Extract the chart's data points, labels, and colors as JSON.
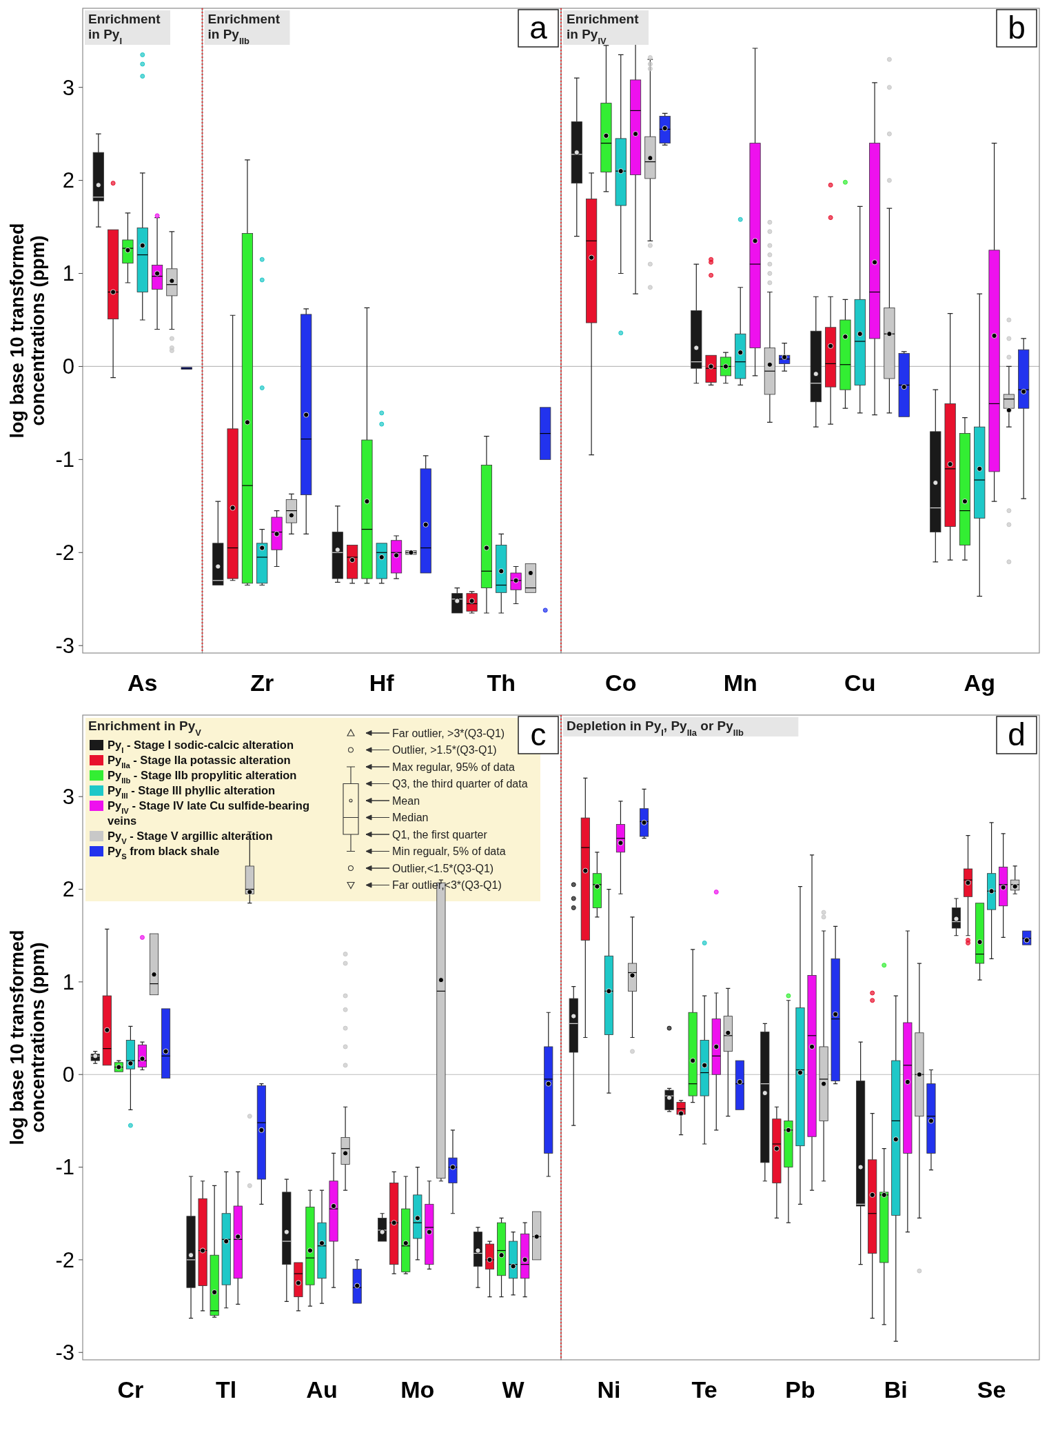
{
  "chart_data": [
    {
      "type": "box",
      "ylabel": "log base 10 transformed concentrations (ppm)",
      "annotations": [
        "Enrichment in Py$_{I}$"
      ],
      "categories": [
        "As"
      ],
      "ylim": [
        -3.08,
        3.85
      ],
      "yticks": [
        -3,
        -2,
        -1,
        0,
        1,
        2,
        3
      ],
      "ref_lines": [
        {
          "axis": "y",
          "value": 0
        }
      ],
      "series": [
        {
          "color": "#1a1a1a",
          "boxes": [
            {
              "low": 1.5,
              "q1": 1.78,
              "median": 1.82,
              "q3": 2.3,
              "high": 2.5,
              "mean": 1.95
            }
          ]
        },
        {
          "color": "#e8112d",
          "boxes": [
            {
              "low": -0.12,
              "q1": 0.51,
              "median": 0.8,
              "q3": 1.47,
              "high": 1.47,
              "mean": 0.8,
              "outliers": [
                1.97
              ]
            }
          ]
        },
        {
          "color": "#33ee33",
          "boxes": [
            {
              "low": 0.9,
              "q1": 1.11,
              "median": 1.27,
              "q3": 1.36,
              "high": 1.65,
              "mean": 1.25
            }
          ]
        },
        {
          "color": "#1ec8c8",
          "boxes": [
            {
              "low": 0.5,
              "q1": 0.8,
              "median": 1.2,
              "q3": 1.49,
              "high": 2.08,
              "mean": 1.3,
              "outliers": [
                3.35,
                3.25,
                3.12
              ]
            }
          ]
        },
        {
          "color": "#ee11ee",
          "boxes": [
            {
              "low": 0.4,
              "q1": 0.83,
              "median": 0.97,
              "q3": 1.09,
              "high": 1.6,
              "mean": 1.0,
              "outliers": [
                1.62
              ]
            }
          ]
        },
        {
          "color": "#c8c8c8",
          "boxes": [
            {
              "low": 0.4,
              "q1": 0.76,
              "median": 0.88,
              "q3": 1.05,
              "high": 1.45,
              "mean": 0.92,
              "outliers": [
                0.3,
                0.2,
                0.17
              ]
            }
          ]
        },
        {
          "color": "#2233ee",
          "boxes": [
            {
              "low": -0.03,
              "q1": -0.03,
              "median": -0.02,
              "q3": -0.01,
              "high": -0.01
            }
          ]
        }
      ]
    },
    {
      "type": "box",
      "title": "a",
      "tick_labels": "x",
      "annotations": [
        "Enrichment in Py$_{IIb}$"
      ],
      "categories": [
        "Zr",
        "Hf",
        "Th"
      ],
      "ylim": [
        -3.08,
        3.85
      ],
      "yticks": [
        -3,
        -2,
        -1,
        0,
        1,
        2,
        3
      ],
      "ref_lines": [
        {
          "axis": "y",
          "value": 0
        }
      ],
      "series": [
        {
          "color": "#1a1a1a",
          "boxes": [
            {
              "low": -2.35,
              "q1": -2.35,
              "median": -2.3,
              "q3": -1.9,
              "high": -1.45,
              "mean": -2.15
            },
            {
              "low": -2.32,
              "q1": -2.28,
              "median": -2.0,
              "q3": -1.78,
              "high": -1.5,
              "mean": -1.97
            },
            {
              "low": -2.65,
              "q1": -2.65,
              "median": -2.5,
              "q3": -2.44,
              "high": -2.38,
              "mean": -2.52
            }
          ]
        },
        {
          "color": "#e8112d",
          "boxes": [
            {
              "low": -2.3,
              "q1": -2.28,
              "median": -1.95,
              "q3": -0.67,
              "high": 0.55,
              "mean": -1.52
            },
            {
              "low": -2.33,
              "q1": -2.28,
              "median": -2.05,
              "q3": -1.92,
              "high": -1.92,
              "mean": -2.08
            },
            {
              "low": -2.65,
              "q1": -2.63,
              "median": -2.55,
              "q3": -2.44,
              "high": -2.42,
              "mean": -2.52
            }
          ]
        },
        {
          "color": "#33ee33",
          "boxes": [
            {
              "low": -2.35,
              "q1": -2.33,
              "median": -1.28,
              "q3": 1.43,
              "high": 2.22,
              "mean": -0.6
            },
            {
              "low": -2.33,
              "q1": -2.28,
              "median": -1.75,
              "q3": -0.79,
              "high": 0.63,
              "mean": -1.45
            },
            {
              "low": -2.65,
              "q1": -2.38,
              "median": -2.2,
              "q3": -1.06,
              "high": -0.75,
              "mean": -1.95
            }
          ]
        },
        {
          "color": "#1ec8c8",
          "boxes": [
            {
              "low": -2.35,
              "q1": -2.33,
              "median": -2.05,
              "q3": -1.9,
              "high": -1.75,
              "mean": -1.95,
              "outliers": [
                1.15,
                0.93,
                -0.23
              ]
            },
            {
              "low": -2.33,
              "q1": -2.28,
              "median": -2.0,
              "q3": -1.9,
              "high": -1.9,
              "mean": -2.05,
              "outliers": [
                -0.5,
                -0.62
              ]
            },
            {
              "low": -2.65,
              "q1": -2.43,
              "median": -2.35,
              "q3": -1.92,
              "high": -1.8,
              "mean": -2.2
            }
          ]
        },
        {
          "color": "#ee11ee",
          "boxes": [
            {
              "low": -2.15,
              "q1": -1.97,
              "median": -1.78,
              "q3": -1.62,
              "high": -1.55,
              "mean": -1.8
            },
            {
              "low": -2.28,
              "q1": -2.22,
              "median": -2.0,
              "q3": -1.87,
              "high": -1.82,
              "mean": -2.03
            },
            {
              "low": -2.55,
              "q1": -2.4,
              "median": -2.3,
              "q3": -2.22,
              "high": -2.15,
              "mean": -2.3
            }
          ]
        },
        {
          "color": "#c8c8c8",
          "boxes": [
            {
              "low": -1.8,
              "q1": -1.68,
              "median": -1.55,
              "q3": -1.43,
              "high": -1.37,
              "mean": -1.6
            },
            {
              "low": -2.02,
              "q1": -2.02,
              "median": -2.0,
              "q3": -1.98,
              "high": -1.98,
              "mean": -2.0
            },
            {
              "low": -2.43,
              "q1": -2.43,
              "median": -2.38,
              "q3": -2.12,
              "high": -2.12,
              "mean": -2.22
            }
          ]
        },
        {
          "color": "#2233ee",
          "boxes": [
            {
              "low": -1.8,
              "q1": -1.38,
              "median": -0.78,
              "q3": 0.56,
              "high": 0.62,
              "mean": -0.52
            },
            {
              "low": -2.22,
              "q1": -2.22,
              "median": -1.95,
              "q3": -1.1,
              "high": -0.96,
              "mean": -1.7
            },
            {
              "low": -1.0,
              "q1": -1.0,
              "median": -0.72,
              "q3": -0.44,
              "high": -0.44,
              "outliers": [
                -2.62
              ]
            }
          ]
        }
      ]
    },
    {
      "type": "box",
      "title": "b",
      "tick_labels": "x",
      "annotations": [
        "Enrichment in Py$_{IV}$"
      ],
      "categories": [
        "Co",
        "Mn",
        "Cu",
        "Ag"
      ],
      "ylim": [
        -3.08,
        3.85
      ],
      "yticks": [
        -3,
        -2,
        -1,
        0,
        1,
        2,
        3
      ],
      "ref_lines": [
        {
          "axis": "y",
          "value": 0
        }
      ],
      "series": [
        {
          "color": "#1a1a1a",
          "boxes": [
            {
              "low": 1.4,
              "q1": 1.97,
              "median": 2.28,
              "q3": 2.63,
              "high": 3.1,
              "mean": 2.3
            },
            {
              "low": -0.18,
              "q1": -0.02,
              "median": 0.05,
              "q3": 0.6,
              "high": 1.1,
              "mean": 0.2
            },
            {
              "low": -0.65,
              "q1": -0.38,
              "median": -0.18,
              "q3": 0.38,
              "high": 0.75,
              "mean": -0.08
            },
            {
              "low": -2.1,
              "q1": -1.78,
              "median": -1.52,
              "q3": -0.7,
              "high": -0.25,
              "mean": -1.25
            }
          ]
        },
        {
          "color": "#e8112d",
          "boxes": [
            {
              "low": -0.95,
              "q1": 0.47,
              "median": 1.35,
              "q3": 1.8,
              "high": 2.08,
              "mean": 1.17
            },
            {
              "low": -0.2,
              "q1": -0.17,
              "median": -0.02,
              "q3": 0.12,
              "high": 0.12,
              "mean": 0.0,
              "outliers": [
                1.15,
                1.12,
                0.98
              ]
            },
            {
              "low": -0.62,
              "q1": -0.22,
              "median": 0.03,
              "q3": 0.42,
              "high": 0.75,
              "mean": 0.22,
              "outliers": [
                1.95,
                1.6
              ]
            },
            {
              "low": -2.08,
              "q1": -1.72,
              "median": -1.1,
              "q3": -0.4,
              "high": 0.57,
              "mean": -1.05
            }
          ]
        },
        {
          "color": "#33ee33",
          "boxes": [
            {
              "low": 1.88,
              "q1": 2.09,
              "median": 2.4,
              "q3": 2.83,
              "high": 3.45,
              "mean": 2.48
            },
            {
              "low": -0.18,
              "q1": -0.1,
              "median": 0.0,
              "q3": 0.1,
              "high": 0.15,
              "mean": 0.0
            },
            {
              "low": -0.45,
              "q1": -0.25,
              "median": 0.02,
              "q3": 0.5,
              "high": 0.72,
              "mean": 0.32,
              "outliers": [
                1.98
              ]
            },
            {
              "low": -2.08,
              "q1": -1.92,
              "median": -1.55,
              "q3": -0.72,
              "high": -0.55,
              "mean": -1.45
            }
          ]
        },
        {
          "color": "#1ec8c8",
          "boxes": [
            {
              "low": 1.0,
              "q1": 1.73,
              "median": 2.1,
              "q3": 2.45,
              "high": 3.35,
              "mean": 2.1,
              "outliers": [
                0.36
              ]
            },
            {
              "low": -0.2,
              "q1": -0.13,
              "median": 0.05,
              "q3": 0.35,
              "high": 0.85,
              "mean": 0.15,
              "outliers": [
                1.58
              ]
            },
            {
              "low": -0.5,
              "q1": -0.2,
              "median": 0.27,
              "q3": 0.72,
              "high": 1.72,
              "mean": 0.35
            },
            {
              "low": -2.47,
              "q1": -1.63,
              "median": -1.22,
              "q3": -0.65,
              "high": 0.78,
              "mean": -1.1
            }
          ]
        },
        {
          "color": "#ee11ee",
          "boxes": [
            {
              "low": 0.78,
              "q1": 2.06,
              "median": 2.75,
              "q3": 3.08,
              "high": 3.55,
              "mean": 2.5
            },
            {
              "low": -0.1,
              "q1": 0.2,
              "median": 1.1,
              "q3": 2.4,
              "high": 3.42,
              "mean": 1.35
            },
            {
              "low": -0.52,
              "q1": 0.3,
              "median": 0.8,
              "q3": 2.4,
              "high": 3.05,
              "mean": 1.12
            },
            {
              "low": -1.45,
              "q1": -1.13,
              "median": -0.4,
              "q3": 1.25,
              "high": 2.4,
              "mean": 0.33
            }
          ]
        },
        {
          "color": "#c8c8c8",
          "boxes": [
            {
              "low": 1.35,
              "q1": 2.02,
              "median": 2.2,
              "q3": 2.47,
              "high": 3.3,
              "mean": 2.24,
              "outliers": [
                3.32,
                3.25,
                3.2,
                1.3,
                1.1,
                0.85
              ]
            },
            {
              "low": -0.6,
              "q1": -0.3,
              "median": -0.05,
              "q3": 0.2,
              "high": 0.8,
              "mean": 0.02,
              "outliers": [
                1.55,
                1.45,
                1.3,
                1.2,
                1.1,
                1.0,
                0.9
              ]
            },
            {
              "low": -0.5,
              "q1": -0.13,
              "median": 0.35,
              "q3": 0.63,
              "high": 1.7,
              "mean": 0.35,
              "outliers": [
                3.3,
                3.0,
                2.5,
                2.0
              ]
            },
            {
              "low": -0.65,
              "q1": -0.45,
              "median": -0.35,
              "q3": -0.3,
              "high": 0.0,
              "mean": -0.47,
              "outliers": [
                0.5,
                0.3,
                0.1,
                -1.55,
                -1.7,
                -2.1
              ]
            }
          ]
        },
        {
          "color": "#2233ee",
          "boxes": [
            {
              "low": 2.38,
              "q1": 2.4,
              "median": 2.55,
              "q3": 2.69,
              "high": 2.72,
              "mean": 2.56
            },
            {
              "low": -0.05,
              "q1": 0.03,
              "median": 0.08,
              "q3": 0.12,
              "high": 0.25,
              "mean": 0.1
            },
            {
              "low": -0.54,
              "q1": -0.54,
              "median": -0.2,
              "q3": 0.14,
              "high": 0.16,
              "mean": -0.22
            },
            {
              "low": -1.42,
              "q1": -0.45,
              "median": -0.25,
              "q3": 0.18,
              "high": 0.3,
              "mean": -0.27
            }
          ]
        }
      ]
    },
    {
      "type": "box",
      "title": "c",
      "ylabel": "log base 10 transformed concentrations (ppm)",
      "legend": "top left",
      "annotations": [
        "Enrichment in Py$_{V}$",
        "Far outlier, >3*(Q3-Q1)",
        "Outlier, >1.5*(Q3-Q1)",
        "Max regular, 95% of data",
        "Q3, the third quarter of data",
        "Mean",
        "Median",
        "Q1, the first quarter",
        "Min regualr, 5% of data",
        "Outlier,<1.5*(Q3-Q1)",
        "Far outlier,<3*(Q3-Q1)"
      ],
      "categories": [
        "Cr",
        "Tl",
        "Au",
        "Mo",
        "W"
      ],
      "ylim": [
        -3.08,
        3.88
      ],
      "yticks": [
        -3,
        -2,
        -1,
        0,
        1,
        2,
        3
      ],
      "ref_lines": [
        {
          "axis": "y",
          "value": 0
        }
      ],
      "series": [
        {
          "name": "Py$_{I}$ - Stage I sodic-calcic alteration",
          "color": "#1a1a1a",
          "boxes": [
            {
              "low": 0.12,
              "q1": 0.15,
              "median": 0.2,
              "q3": 0.22,
              "high": 0.25,
              "mean": 0.2
            },
            {
              "low": -2.63,
              "q1": -2.3,
              "median": -2.0,
              "q3": -1.53,
              "high": -1.1,
              "mean": -1.95
            },
            {
              "low": -2.45,
              "q1": -2.05,
              "median": -1.8,
              "q3": -1.27,
              "high": -1.13,
              "mean": -1.7
            },
            {
              "low": -1.8,
              "q1": -1.8,
              "median": -1.68,
              "q3": -1.55,
              "high": -1.5,
              "mean": -1.7
            },
            {
              "low": -2.3,
              "q1": -2.07,
              "median": -1.93,
              "q3": -1.7,
              "high": -1.65,
              "mean": -1.9
            }
          ]
        },
        {
          "name": "Py$_{IIa}$ - Stage IIa potassic alteration",
          "color": "#e8112d",
          "boxes": [
            {
              "low": 0.1,
              "q1": 0.1,
              "median": 0.28,
              "q3": 0.85,
              "high": 1.57,
              "mean": 0.48
            },
            {
              "low": -2.55,
              "q1": -2.28,
              "median": -1.9,
              "q3": -1.34,
              "high": -1.15,
              "mean": -1.9
            },
            {
              "low": -2.55,
              "q1": -2.4,
              "median": -2.15,
              "q3": -2.03,
              "high": -2.03,
              "mean": -2.25
            },
            {
              "low": -2.15,
              "q1": -2.05,
              "median": -1.6,
              "q3": -1.17,
              "high": -1.05,
              "mean": -1.6
            },
            {
              "low": -2.4,
              "q1": -2.1,
              "median": -2.0,
              "q3": -1.83,
              "high": -1.8,
              "mean": -2.0
            }
          ]
        },
        {
          "name": "Py$_{IIb}$ - Stage IIb propylitic  alteration",
          "color": "#33ee33",
          "boxes": [
            {
              "low": 0.02,
              "q1": 0.03,
              "median": 0.08,
              "q3": 0.13,
              "high": 0.15,
              "mean": 0.08
            },
            {
              "low": -2.62,
              "q1": -2.6,
              "median": -2.55,
              "q3": -1.95,
              "high": -1.2,
              "mean": -2.35
            },
            {
              "low": -2.5,
              "q1": -2.27,
              "median": -1.98,
              "q3": -1.43,
              "high": -1.25,
              "mean": -1.9
            },
            {
              "low": -2.15,
              "q1": -2.13,
              "median": -1.85,
              "q3": -1.45,
              "high": -1.1,
              "mean": -1.82
            },
            {
              "low": -2.4,
              "q1": -2.17,
              "median": -1.9,
              "q3": -1.6,
              "high": -1.55,
              "mean": -1.95
            }
          ]
        },
        {
          "name": "Py$_{III}$ - Stage III phyllic alteration",
          "color": "#1ec8c8",
          "boxes": [
            {
              "low": -0.38,
              "q1": 0.06,
              "median": 0.15,
              "q3": 0.37,
              "high": 0.52,
              "mean": 0.12,
              "outliers": [
                -0.55
              ]
            },
            {
              "low": -2.52,
              "q1": -2.27,
              "median": -1.78,
              "q3": -1.5,
              "high": -1.05,
              "mean": -1.8
            },
            {
              "low": -2.47,
              "q1": -2.2,
              "median": -1.85,
              "q3": -1.6,
              "high": -1.25,
              "mean": -1.82
            },
            {
              "low": -2.0,
              "q1": -1.77,
              "median": -1.6,
              "q3": -1.3,
              "high": -1.0,
              "mean": -1.55
            },
            {
              "low": -2.38,
              "q1": -2.2,
              "median": -2.05,
              "q3": -1.8,
              "high": -1.7,
              "mean": -2.07
            }
          ]
        },
        {
          "name": "Py$_{IV}$ - Stage IV late Cu sulfide-bearing veins",
          "color": "#ee11ee",
          "boxes": [
            {
              "low": 0.05,
              "q1": 0.08,
              "median": 0.15,
              "q3": 0.32,
              "high": 0.35,
              "mean": 0.17,
              "outliers": [
                1.48
              ]
            },
            {
              "low": -2.48,
              "q1": -2.2,
              "median": -1.78,
              "q3": -1.42,
              "high": -1.05,
              "mean": -1.75
            },
            {
              "low": -2.3,
              "q1": -1.8,
              "median": -1.45,
              "q3": -1.15,
              "high": -0.85,
              "mean": -1.42
            },
            {
              "low": -2.1,
              "q1": -2.05,
              "median": -1.65,
              "q3": -1.4,
              "high": -1.15,
              "mean": -1.7
            },
            {
              "low": -2.4,
              "q1": -2.2,
              "median": -2.05,
              "q3": -1.72,
              "high": -1.6,
              "mean": -2.0
            }
          ]
        },
        {
          "name": "Py$_{V}$ - Stage V argillic alteration",
          "color": "#c8c8c8",
          "boxes": [
            {
              "low": 0.86,
              "q1": 0.86,
              "median": 0.98,
              "q3": 1.52,
              "high": 1.52,
              "mean": 1.08
            },
            {
              "low": 1.85,
              "q1": 1.95,
              "median": 2.0,
              "q3": 2.25,
              "high": 2.62,
              "mean": 1.97,
              "outliers": [
                -0.45,
                -1.2
              ]
            },
            {
              "low": -1.25,
              "q1": -0.97,
              "median": -0.8,
              "q3": -0.68,
              "high": -0.35,
              "mean": -0.85,
              "outliers": [
                1.3,
                1.2,
                0.85,
                0.7,
                0.5,
                0.3,
                0.1
              ]
            },
            {
              "low": -1.15,
              "q1": -1.12,
              "median": 0.9,
              "q3": 2.07,
              "high": 2.1,
              "mean": 1.02
            },
            {
              "low": -2.0,
              "q1": -2.0,
              "median": -1.75,
              "q3": -1.48,
              "high": -1.48,
              "mean": -1.75
            }
          ]
        },
        {
          "name": "Py$_{S}$ from black shale",
          "color": "#2233ee",
          "boxes": [
            {
              "low": -0.04,
              "q1": -0.04,
              "median": 0.2,
              "q3": 0.71,
              "high": 0.71,
              "mean": 0.25
            },
            {
              "low": -1.4,
              "q1": -1.13,
              "median": -0.52,
              "q3": -0.12,
              "high": -0.1,
              "mean": -0.6
            },
            {
              "low": -2.47,
              "q1": -2.47,
              "median": -2.3,
              "q3": -2.1,
              "high": -2.0,
              "mean": -2.28
            },
            {
              "low": -1.5,
              "q1": -1.17,
              "median": -1.0,
              "q3": -0.9,
              "high": -0.6,
              "mean": -1.0
            },
            {
              "low": -1.1,
              "q1": -0.85,
              "median": -0.05,
              "q3": 0.3,
              "high": 0.67,
              "mean": -0.1
            }
          ]
        }
      ]
    },
    {
      "type": "box",
      "title": "d",
      "tick_labels": "x",
      "annotations": [
        "Depletion in Py$_{I}$, Py$_{IIa}$ or Py$_{IIb}$"
      ],
      "categories": [
        "Ni",
        "Te",
        "Pb",
        "Bi",
        "Se"
      ],
      "ylim": [
        -3.08,
        3.88
      ],
      "yticks": [
        -3,
        -2,
        -1,
        0,
        1,
        2,
        3
      ],
      "ref_lines": [
        {
          "axis": "y",
          "value": 0
        }
      ],
      "series": [
        {
          "color": "#1a1a1a",
          "boxes": [
            {
              "low": -0.55,
              "q1": 0.24,
              "median": 0.55,
              "q3": 0.82,
              "high": 0.95,
              "mean": 0.63,
              "outliers": [
                2.05,
                1.9,
                1.8
              ]
            },
            {
              "low": -0.4,
              "q1": -0.38,
              "median": -0.23,
              "q3": -0.17,
              "high": -0.15,
              "mean": -0.25,
              "outliers": [
                0.5
              ]
            },
            {
              "low": -1.15,
              "q1": -0.95,
              "median": -0.1,
              "q3": 0.46,
              "high": 0.55,
              "mean": -0.2
            },
            {
              "low": -2.05,
              "q1": -1.42,
              "median": -1.4,
              "q3": -0.07,
              "high": 0.35,
              "mean": -1.0
            },
            {
              "low": 1.5,
              "q1": 1.58,
              "median": 1.65,
              "q3": 1.8,
              "high": 1.9,
              "mean": 1.68
            }
          ]
        },
        {
          "color": "#e8112d",
          "boxes": [
            {
              "low": 0.4,
              "q1": 1.45,
              "median": 2.45,
              "q3": 2.77,
              "high": 3.2,
              "mean": 2.2
            },
            {
              "low": -0.65,
              "q1": -0.43,
              "median": -0.37,
              "q3": -0.3,
              "high": -0.28,
              "mean": -0.42
            },
            {
              "low": -1.55,
              "q1": -1.17,
              "median": -0.75,
              "q3": -0.48,
              "high": -0.35,
              "mean": -0.8
            },
            {
              "low": -2.63,
              "q1": -1.93,
              "median": -1.5,
              "q3": -0.92,
              "high": -0.42,
              "mean": -1.3,
              "outliers": [
                0.88,
                0.8
              ]
            },
            {
              "low": 1.5,
              "q1": 1.92,
              "median": 2.1,
              "q3": 2.22,
              "high": 2.58,
              "mean": 2.07,
              "outliers": [
                1.45,
                1.42
              ]
            }
          ]
        },
        {
          "color": "#33ee33",
          "boxes": [
            {
              "low": 1.7,
              "q1": 1.8,
              "median": 2.05,
              "q3": 2.17,
              "high": 2.4,
              "mean": 2.03
            },
            {
              "low": -0.3,
              "q1": -0.23,
              "median": -0.1,
              "q3": 0.67,
              "high": 1.35,
              "mean": 0.15
            },
            {
              "low": -1.6,
              "q1": -1.0,
              "median": -0.6,
              "q3": -0.5,
              "high": 0.8,
              "mean": -0.6,
              "outliers": [
                0.85
              ]
            },
            {
              "low": -2.7,
              "q1": -2.03,
              "median": -1.3,
              "q3": -1.27,
              "high": -0.8,
              "mean": -1.3,
              "outliers": [
                1.18
              ]
            },
            {
              "low": 1.02,
              "q1": 1.2,
              "median": 1.3,
              "q3": 1.85,
              "high": 1.85,
              "mean": 1.43
            }
          ]
        },
        {
          "color": "#1ec8c8",
          "boxes": [
            {
              "low": -0.2,
              "q1": 0.43,
              "median": 0.9,
              "q3": 1.28,
              "high": 2.0,
              "mean": 0.9
            },
            {
              "low": -0.75,
              "q1": -0.23,
              "median": 0.02,
              "q3": 0.37,
              "high": 0.85,
              "mean": 0.1,
              "outliers": [
                1.42
              ]
            },
            {
              "low": -1.4,
              "q1": -0.77,
              "median": 0.05,
              "q3": 0.72,
              "high": 2.03,
              "mean": 0.02
            },
            {
              "low": -2.88,
              "q1": -1.52,
              "median": -0.5,
              "q3": 0.15,
              "high": 0.85,
              "mean": -0.7
            },
            {
              "low": 1.25,
              "q1": 1.78,
              "median": 1.98,
              "q3": 2.17,
              "high": 2.72,
              "mean": 1.98
            }
          ]
        },
        {
          "color": "#ee11ee",
          "boxes": [
            {
              "low": 1.95,
              "q1": 2.4,
              "median": 2.55,
              "q3": 2.7,
              "high": 2.95,
              "mean": 2.5
            },
            {
              "low": -0.6,
              "q1": 0.0,
              "median": 0.2,
              "q3": 0.6,
              "high": 0.88,
              "mean": 0.3,
              "outliers": [
                1.97
              ]
            },
            {
              "low": -1.25,
              "q1": -0.67,
              "median": 0.42,
              "q3": 1.07,
              "high": 2.37,
              "mean": 0.3
            },
            {
              "low": -1.7,
              "q1": -0.85,
              "median": 0.1,
              "q3": 0.56,
              "high": 1.55,
              "mean": -0.08
            },
            {
              "low": 1.48,
              "q1": 1.82,
              "median": 2.05,
              "q3": 2.24,
              "high": 2.6,
              "mean": 2.02
            }
          ]
        },
        {
          "color": "#c8c8c8",
          "boxes": [
            {
              "low": 0.4,
              "q1": 0.9,
              "median": 1.1,
              "q3": 1.2,
              "high": 1.7,
              "mean": 1.07,
              "outliers": [
                0.25
              ]
            },
            {
              "low": -0.45,
              "q1": 0.25,
              "median": 0.42,
              "q3": 0.63,
              "high": 0.93,
              "mean": 0.45
            },
            {
              "low": -1.15,
              "q1": -0.5,
              "median": -0.05,
              "q3": 0.3,
              "high": 1.55,
              "mean": -0.1,
              "outliers": [
                1.75,
                1.7
              ]
            },
            {
              "low": -1.55,
              "q1": -0.45,
              "median": 0.0,
              "q3": 0.45,
              "high": 1.2,
              "mean": 0.0,
              "outliers": [
                -2.12
              ]
            },
            {
              "low": 1.95,
              "q1": 1.99,
              "median": 2.05,
              "q3": 2.1,
              "high": 2.25,
              "mean": 2.03
            }
          ]
        },
        {
          "color": "#2233ee",
          "boxes": [
            {
              "low": 2.55,
              "q1": 2.57,
              "median": 2.73,
              "q3": 2.87,
              "high": 3.08,
              "mean": 2.72
            },
            {
              "low": -0.38,
              "q1": -0.38,
              "median": -0.1,
              "q3": 0.15,
              "high": 0.15,
              "mean": -0.08
            },
            {
              "low": -0.1,
              "q1": -0.07,
              "median": 0.6,
              "q3": 1.25,
              "high": 1.6,
              "mean": 0.65
            },
            {
              "low": -1.03,
              "q1": -0.85,
              "median": -0.45,
              "q3": -0.1,
              "high": 0.05,
              "mean": -0.5
            },
            {
              "low": 1.4,
              "q1": 1.4,
              "median": 1.47,
              "q3": 1.55,
              "high": 1.55,
              "mean": 1.45
            }
          ]
        }
      ]
    }
  ]
}
